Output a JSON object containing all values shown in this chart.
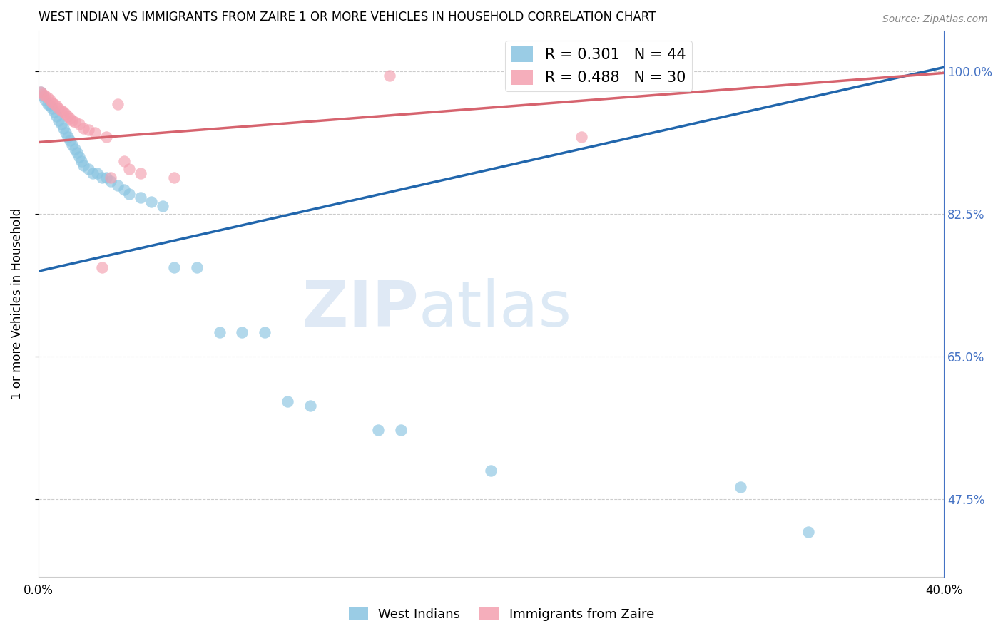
{
  "title": "WEST INDIAN VS IMMIGRANTS FROM ZAIRE 1 OR MORE VEHICLES IN HOUSEHOLD CORRELATION CHART",
  "source": "Source: ZipAtlas.com",
  "ylabel": "1 or more Vehicles in Household",
  "xlim": [
    0.0,
    0.4
  ],
  "ylim": [
    0.38,
    1.05
  ],
  "xticks": [
    0.0,
    0.05,
    0.1,
    0.15,
    0.2,
    0.25,
    0.3,
    0.35,
    0.4
  ],
  "xticklabels": [
    "0.0%",
    "",
    "",
    "",
    "",
    "",
    "",
    "",
    "40.0%"
  ],
  "west_indian_x": [
    0.001,
    0.002,
    0.003,
    0.004,
    0.005,
    0.006,
    0.007,
    0.008,
    0.009,
    0.01,
    0.011,
    0.012,
    0.013,
    0.014,
    0.015,
    0.016,
    0.017,
    0.018,
    0.019,
    0.02,
    0.022,
    0.024,
    0.026,
    0.028,
    0.03,
    0.032,
    0.035,
    0.038,
    0.04,
    0.045,
    0.05,
    0.055,
    0.06,
    0.07,
    0.08,
    0.09,
    0.1,
    0.11,
    0.12,
    0.15,
    0.16,
    0.2,
    0.31,
    0.34
  ],
  "west_indian_y": [
    0.975,
    0.97,
    0.965,
    0.96,
    0.958,
    0.955,
    0.95,
    0.945,
    0.94,
    0.935,
    0.93,
    0.925,
    0.92,
    0.915,
    0.91,
    0.905,
    0.9,
    0.895,
    0.89,
    0.885,
    0.88,
    0.875,
    0.875,
    0.87,
    0.87,
    0.865,
    0.86,
    0.855,
    0.85,
    0.845,
    0.84,
    0.835,
    0.76,
    0.76,
    0.68,
    0.68,
    0.68,
    0.595,
    0.59,
    0.56,
    0.56,
    0.51,
    0.49,
    0.435
  ],
  "zaire_x": [
    0.001,
    0.002,
    0.003,
    0.004,
    0.005,
    0.006,
    0.007,
    0.008,
    0.009,
    0.01,
    0.011,
    0.012,
    0.013,
    0.014,
    0.015,
    0.016,
    0.018,
    0.02,
    0.022,
    0.025,
    0.028,
    0.03,
    0.032,
    0.035,
    0.038,
    0.04,
    0.045,
    0.06,
    0.155,
    0.24
  ],
  "zaire_y": [
    0.975,
    0.972,
    0.97,
    0.968,
    0.965,
    0.962,
    0.96,
    0.958,
    0.955,
    0.952,
    0.95,
    0.948,
    0.945,
    0.942,
    0.94,
    0.938,
    0.935,
    0.93,
    0.928,
    0.925,
    0.76,
    0.92,
    0.87,
    0.96,
    0.89,
    0.88,
    0.875,
    0.87,
    0.995,
    0.92
  ],
  "blue_R": 0.301,
  "blue_N": 44,
  "pink_R": 0.488,
  "pink_N": 30,
  "blue_color": "#89c4e1",
  "pink_color": "#f4a0b0",
  "blue_line_color": "#2166ac",
  "pink_line_color": "#d6636e",
  "blue_line_x0": 0.0,
  "blue_line_y0": 0.755,
  "blue_line_x1": 0.4,
  "blue_line_y1": 1.005,
  "pink_line_x0": 0.0,
  "pink_line_y0": 0.913,
  "pink_line_x1": 0.4,
  "pink_line_y1": 0.998,
  "watermark_zip": "ZIP",
  "watermark_atlas": "atlas",
  "right_axis_color": "#4472c4",
  "right_yticks": [
    0.475,
    0.65,
    0.825,
    1.0
  ],
  "right_yticklabels": [
    "47.5%",
    "65.0%",
    "82.5%",
    "100.0%"
  ],
  "grid_yticks": [
    0.475,
    0.65,
    0.825,
    1.0
  ]
}
